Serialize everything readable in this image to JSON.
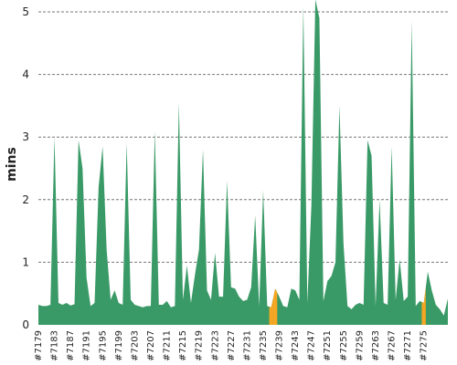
{
  "chart_data": {
    "type": "area",
    "title": "",
    "xlabel": "",
    "ylabel": "mins",
    "ylim": [
      0,
      5.2
    ],
    "yticks": [
      0,
      1,
      2,
      3,
      4,
      5
    ],
    "grid": "horizontal-dashed",
    "colors": {
      "normal": "#3a9a67",
      "highlight": "#f5a623"
    },
    "x_labels": [
      "#7179",
      "#7183",
      "#7187",
      "#7191",
      "#7195",
      "#7199",
      "#7203",
      "#7207",
      "#7211",
      "#7215",
      "#7219",
      "#7223",
      "#7227",
      "#7231",
      "#7235",
      "#7239",
      "#7243",
      "#7247",
      "#7251",
      "#7255",
      "#7259",
      "#7263",
      "#7267",
      "#7271",
      "#7275"
    ],
    "build_start": 7179,
    "values": [
      0.32,
      0.3,
      0.3,
      0.32,
      3.0,
      0.35,
      0.32,
      0.35,
      0.31,
      0.33,
      2.95,
      2.5,
      0.75,
      0.3,
      0.35,
      2.2,
      2.85,
      1.2,
      0.4,
      0.55,
      0.35,
      0.32,
      2.9,
      0.4,
      0.32,
      0.3,
      0.28,
      0.3,
      0.3,
      3.1,
      0.32,
      0.32,
      0.38,
      0.28,
      0.3,
      3.55,
      0.4,
      0.95,
      0.35,
      0.8,
      1.2,
      2.8,
      0.55,
      0.4,
      1.15,
      0.45,
      0.45,
      2.3,
      0.6,
      0.58,
      0.45,
      0.38,
      0.4,
      0.6,
      1.75,
      0.3,
      2.15,
      0.3,
      0.28,
      0.58,
      0.45,
      0.3,
      0.28,
      0.58,
      0.55,
      0.4,
      5.1,
      0.35,
      1.9,
      5.2,
      4.9,
      0.38,
      0.7,
      0.78,
      1.0,
      3.5,
      1.3,
      0.3,
      0.25,
      0.32,
      0.35,
      0.32,
      2.95,
      2.7,
      0.3,
      2.0,
      0.35,
      0.32,
      2.85,
      0.4,
      1.05,
      0.38,
      0.45,
      4.85,
      0.3,
      0.38,
      0.35,
      0.85,
      0.55,
      0.32,
      0.25,
      0.15,
      0.42
    ],
    "highlight_builds": [
      7237,
      7238,
      7275
    ]
  }
}
